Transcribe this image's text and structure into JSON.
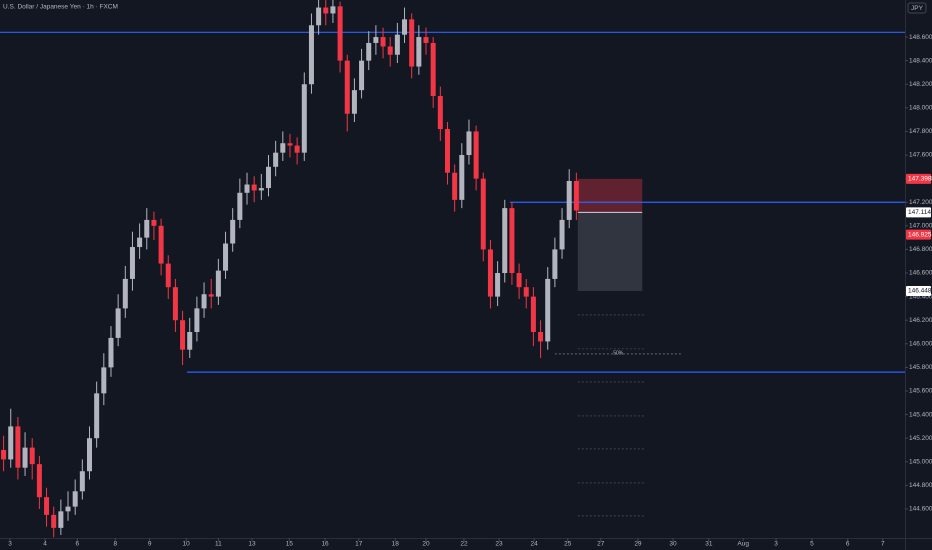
{
  "chart_data": {
    "type": "candlestick",
    "title": "U.S. Dollar / Japanese Yen · 1h · FXCM",
    "y_axis_label": "JPY",
    "up_color": "#b2b5be",
    "down_color": "#f23645",
    "x": [
      0,
      1,
      2,
      3,
      4,
      5,
      6,
      7,
      8,
      9,
      10,
      11,
      12,
      13,
      14,
      15,
      16,
      17,
      18,
      19,
      20,
      21,
      22,
      23,
      24,
      25,
      26,
      27,
      28,
      29,
      30,
      31,
      32,
      33,
      34,
      35,
      36,
      37,
      38,
      39,
      40,
      41,
      42,
      43,
      44,
      45,
      46,
      47,
      48,
      49,
      50,
      51,
      52,
      53,
      54,
      55,
      56,
      57,
      58,
      59,
      60,
      61,
      62,
      63,
      64,
      65,
      66,
      67,
      68,
      69,
      70,
      71,
      72,
      73,
      74,
      75,
      76,
      77,
      78,
      79,
      80
    ],
    "open": [
      145.1,
      145.02,
      145.3,
      144.95,
      145.12,
      144.98,
      144.7,
      144.55,
      144.44,
      144.58,
      144.62,
      144.75,
      144.92,
      145.2,
      145.58,
      145.8,
      146.05,
      146.3,
      146.55,
      146.82,
      146.9,
      147.05,
      147.0,
      146.68,
      146.48,
      146.2,
      145.95,
      146.1,
      146.3,
      146.42,
      146.4,
      146.62,
      146.85,
      147.05,
      147.28,
      147.35,
      147.3,
      147.32,
      147.5,
      147.62,
      147.7,
      147.68,
      147.62,
      148.2,
      148.7,
      148.85,
      148.8,
      148.86,
      148.4,
      147.95,
      148.15,
      148.4,
      148.55,
      148.6,
      148.52,
      148.45,
      148.62,
      148.75,
      148.35,
      148.6,
      148.55,
      148.1,
      147.82,
      147.45,
      147.22,
      147.6,
      147.8,
      147.4,
      146.8,
      146.4,
      146.6,
      147.15,
      146.6,
      146.48,
      146.4,
      146.1,
      146.02,
      146.55,
      146.8,
      147.05,
      147.38
    ],
    "high": [
      145.22,
      145.45,
      145.38,
      145.25,
      145.2,
      145.05,
      144.78,
      144.62,
      144.68,
      144.75,
      144.85,
      145.02,
      145.3,
      145.68,
      145.92,
      146.15,
      146.42,
      146.66,
      146.95,
      147.02,
      147.15,
      147.12,
      147.06,
      146.75,
      146.55,
      146.28,
      146.22,
      146.4,
      146.52,
      146.55,
      146.72,
      146.95,
      147.15,
      147.4,
      147.45,
      147.42,
      147.44,
      147.6,
      147.72,
      147.8,
      147.78,
      147.75,
      148.3,
      148.8,
      148.92,
      148.92,
      148.92,
      148.9,
      148.45,
      148.25,
      148.5,
      148.65,
      148.7,
      148.68,
      148.6,
      148.72,
      148.85,
      148.8,
      148.7,
      148.68,
      148.6,
      148.18,
      147.88,
      147.52,
      147.7,
      147.9,
      147.85,
      147.45,
      146.88,
      146.7,
      147.22,
      147.2,
      146.68,
      146.55,
      146.48,
      146.2,
      146.65,
      146.9,
      147.15,
      147.48,
      147.45
    ],
    "low": [
      144.92,
      144.95,
      144.85,
      144.88,
      144.85,
      144.6,
      144.45,
      144.36,
      144.38,
      144.5,
      144.55,
      144.68,
      144.85,
      145.12,
      145.48,
      145.72,
      145.98,
      146.22,
      146.45,
      146.72,
      146.8,
      146.88,
      146.58,
      146.38,
      146.1,
      145.82,
      145.88,
      146.02,
      146.22,
      146.3,
      146.33,
      146.55,
      146.78,
      146.98,
      147.18,
      147.2,
      147.22,
      147.25,
      147.42,
      147.55,
      147.58,
      147.52,
      147.55,
      148.12,
      148.62,
      148.7,
      148.72,
      148.3,
      147.8,
      147.88,
      148.08,
      148.32,
      148.45,
      148.42,
      148.35,
      148.38,
      148.55,
      148.25,
      148.28,
      148.45,
      148.0,
      147.72,
      147.35,
      147.12,
      147.15,
      147.52,
      147.3,
      146.7,
      146.3,
      146.32,
      146.52,
      146.5,
      146.38,
      146.3,
      145.98,
      145.88,
      145.95,
      146.48,
      146.72,
      146.98,
      147.05
    ],
    "close": [
      145.02,
      145.3,
      144.95,
      145.12,
      144.98,
      144.7,
      144.55,
      144.44,
      144.58,
      144.62,
      144.75,
      144.92,
      145.2,
      145.58,
      145.8,
      146.05,
      146.3,
      146.55,
      146.82,
      146.9,
      147.05,
      147.0,
      146.68,
      146.48,
      146.2,
      145.95,
      146.1,
      146.3,
      146.42,
      146.4,
      146.62,
      146.85,
      147.05,
      147.28,
      147.35,
      147.3,
      147.32,
      147.5,
      147.62,
      147.7,
      147.68,
      147.62,
      148.2,
      148.7,
      148.85,
      148.8,
      148.86,
      148.4,
      147.95,
      148.15,
      148.4,
      148.55,
      148.6,
      148.52,
      148.45,
      148.62,
      148.75,
      148.35,
      148.6,
      148.55,
      148.1,
      147.82,
      147.45,
      147.22,
      147.6,
      147.8,
      147.4,
      146.8,
      146.4,
      146.6,
      147.15,
      146.6,
      146.48,
      146.4,
      146.1,
      146.02,
      146.55,
      146.8,
      147.05,
      147.38,
      147.13
    ],
    "xlim": [
      -0.5,
      125.9
    ],
    "ylim": [
      144.354,
      148.914
    ],
    "xticks": [
      {
        "value": 0.9,
        "label": "3"
      },
      {
        "value": 5.8,
        "label": "4"
      },
      {
        "value": 10.3,
        "label": "6"
      },
      {
        "value": 15.6,
        "label": "8"
      },
      {
        "value": 20.4,
        "label": "9"
      },
      {
        "value": 25.5,
        "label": "10"
      },
      {
        "value": 30,
        "label": "11"
      },
      {
        "value": 34.7,
        "label": "13"
      },
      {
        "value": 39.9,
        "label": "15"
      },
      {
        "value": 44.9,
        "label": "16"
      },
      {
        "value": 49.6,
        "label": "17"
      },
      {
        "value": 54.7,
        "label": "18"
      },
      {
        "value": 59,
        "label": "20"
      },
      {
        "value": 64.3,
        "label": "22"
      },
      {
        "value": 69.2,
        "label": "23"
      },
      {
        "value": 74.1,
        "label": "24"
      },
      {
        "value": 78.8,
        "label": "25"
      },
      {
        "value": 83.4,
        "label": "27"
      },
      {
        "value": 88.6,
        "label": "29"
      },
      {
        "value": 93.5,
        "label": "30"
      },
      {
        "value": 98.5,
        "label": "31"
      },
      {
        "value": 103.3,
        "label": "Aug"
      },
      {
        "value": 107.9,
        "label": "3"
      },
      {
        "value": 112.9,
        "label": "5"
      },
      {
        "value": 117.9,
        "label": "6"
      },
      {
        "value": 122.8,
        "label": "7"
      }
    ],
    "yticks": [
      {
        "value": 144.6,
        "label": "144.600"
      },
      {
        "value": 144.8,
        "label": "144.800"
      },
      {
        "value": 145.0,
        "label": "145.000"
      },
      {
        "value": 145.2,
        "label": "145.200"
      },
      {
        "value": 145.4,
        "label": "145.400"
      },
      {
        "value": 145.6,
        "label": "145.600"
      },
      {
        "value": 145.8,
        "label": "145.800"
      },
      {
        "value": 146.0,
        "label": "146.000"
      },
      {
        "value": 146.2,
        "label": "146.200"
      },
      {
        "value": 146.4,
        "label": "146.400"
      },
      {
        "value": 146.6,
        "label": "146.600"
      },
      {
        "value": 146.8,
        "label": "146.800"
      },
      {
        "value": 147.0,
        "label": "147.000"
      },
      {
        "value": 147.2,
        "label": "147.200"
      },
      {
        "value": 147.4,
        "label": "147.400"
      },
      {
        "value": 147.6,
        "label": "147.600"
      },
      {
        "value": 147.8,
        "label": "147.800"
      },
      {
        "value": 148.0,
        "label": "148.000"
      },
      {
        "value": 148.2,
        "label": "148.200"
      },
      {
        "value": 148.4,
        "label": "148.400"
      },
      {
        "value": 148.6,
        "label": "148.600"
      }
    ],
    "hlines": [
      {
        "value": 148.64,
        "from": -0.5,
        "color": "#2962ff"
      },
      {
        "value": 147.2,
        "from": 70.7,
        "color": "#2962ff"
      },
      {
        "value": 145.76,
        "from": 25.6,
        "color": "#2962ff"
      }
    ],
    "position": {
      "stop": 147.398,
      "entry": 147.114,
      "target": 146.448,
      "x0": 80.2,
      "x1": 89.2
    },
    "price_labels": [
      {
        "value": 147.398,
        "label": "147.398",
        "color": "#f23645"
      },
      {
        "value": 147.114,
        "label": "147.114",
        "color": "#ffffff"
      },
      {
        "value": 146.925,
        "label": "146.925",
        "color": "#f23645"
      },
      {
        "value": 146.448,
        "label": "146.448",
        "color": "#ffffff"
      }
    ],
    "fib": {
      "x": [
        80.2,
        89.6
      ],
      "levels": [
        146.245,
        145.957,
        145.677,
        145.389,
        145.109,
        144.821,
        144.541
      ]
    },
    "midline": {
      "value": 145.914,
      "label": "50%",
      "x": [
        77,
        94.7
      ]
    }
  }
}
